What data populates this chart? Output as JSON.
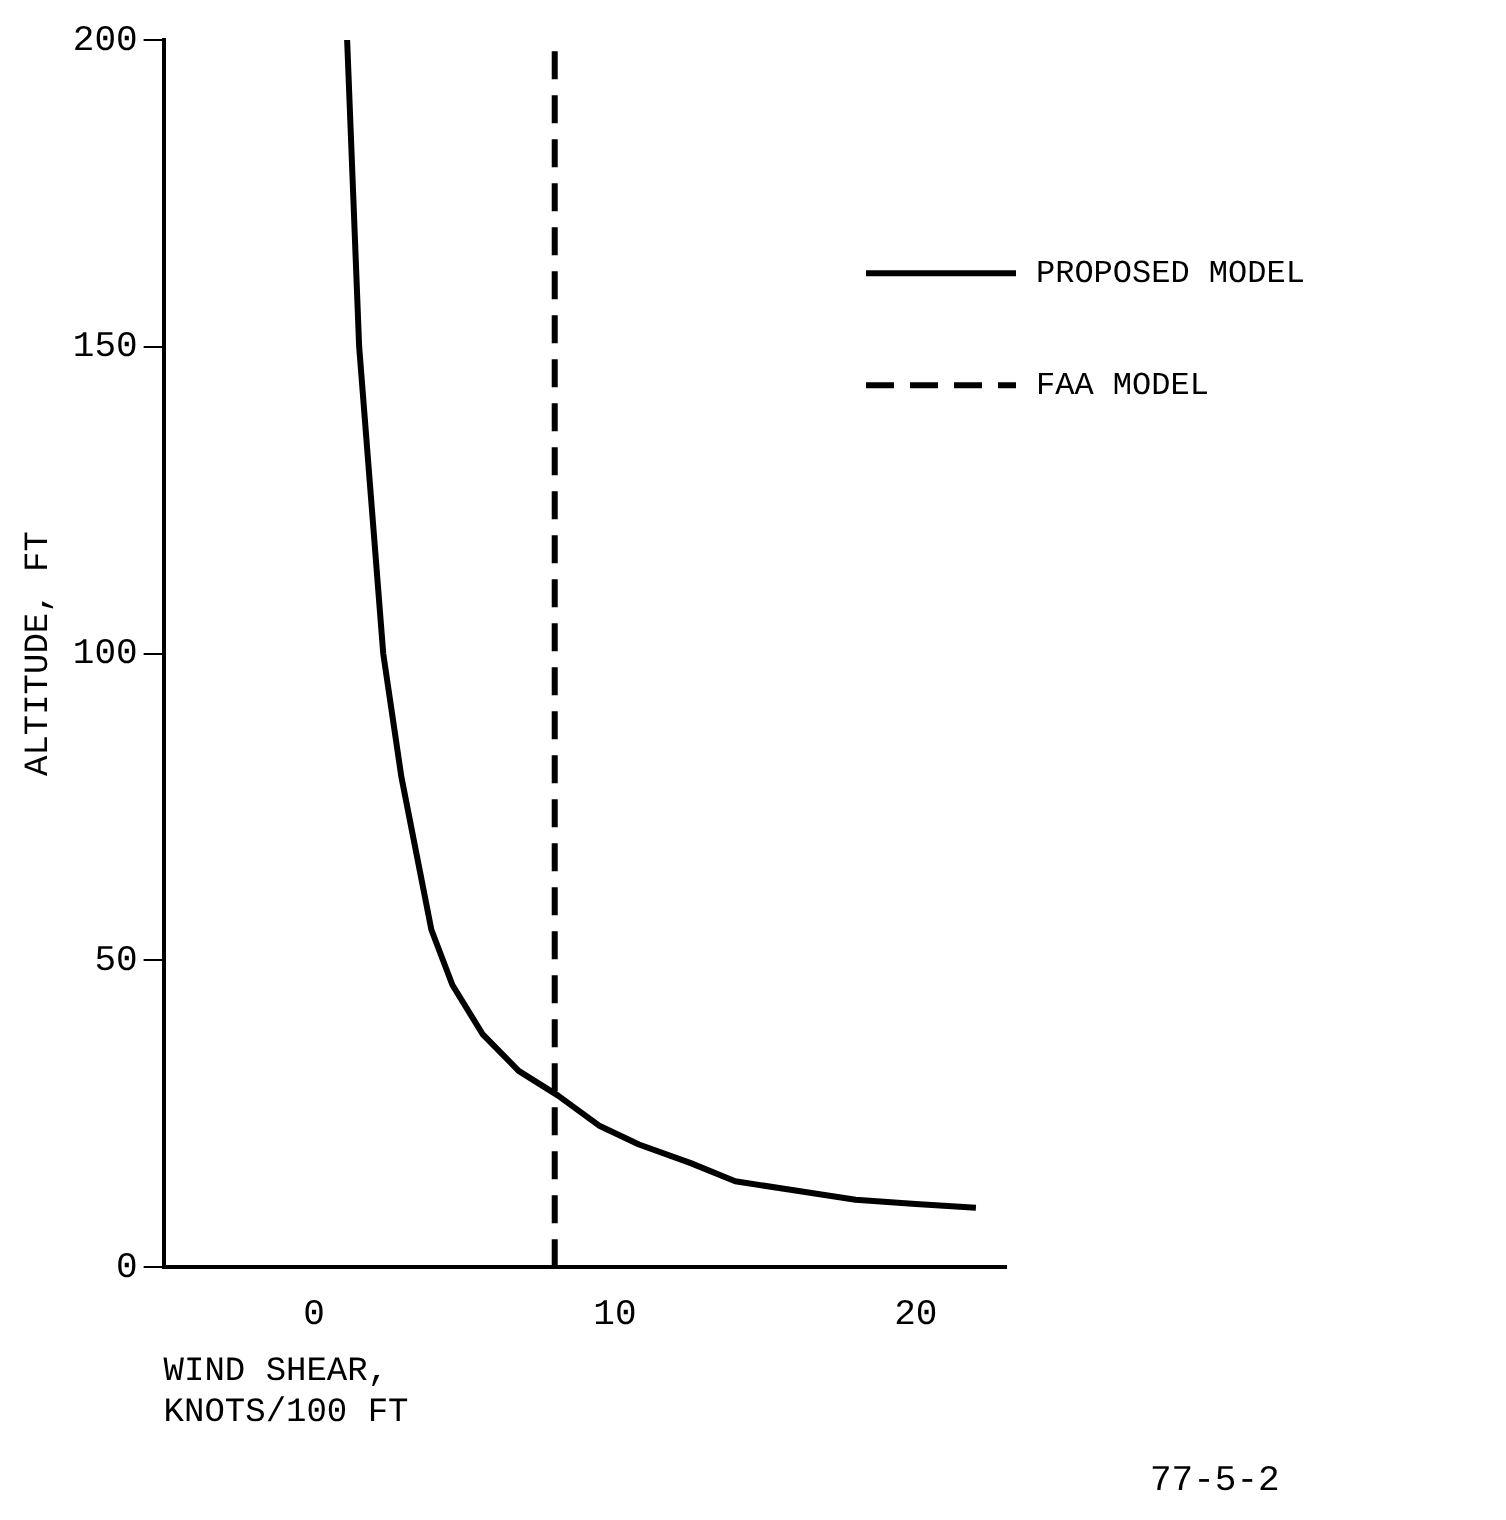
{
  "chart_data": {
    "type": "line",
    "xlabel": "WIND SHEAR,\nKNOTS/100 FT",
    "ylabel": "ALTITUDE, FT",
    "xlim": [
      -5,
      23
    ],
    "xticks": [
      0,
      10,
      20
    ],
    "ylim": [
      0,
      200
    ],
    "yticks": [
      0,
      50,
      100,
      150,
      200
    ],
    "grid": false,
    "legend": "right",
    "marker": "none",
    "annotations": [
      "77-5-2"
    ],
    "series": [
      {
        "name": "PROPOSED MODEL",
        "color": "#000000",
        "line_style": "solid",
        "x": [
          1.1,
          1.3,
          1.5,
          1.9,
          2.3,
          2.9,
          3.5,
          3.9,
          4.6,
          5.6,
          6.8,
          8.1,
          9.5,
          10.8,
          12.5,
          14,
          16,
          18,
          20,
          22
        ],
        "values": [
          200,
          175,
          150,
          125,
          100,
          80,
          65,
          55,
          46,
          38,
          32,
          28,
          23,
          20,
          17,
          14,
          12.5,
          11,
          10.3,
          9.7
        ]
      },
      {
        "name": "FAA MODEL",
        "color": "#000000",
        "line_style": "dashed",
        "x": [
          8,
          8
        ],
        "values": [
          0,
          200
        ]
      }
    ]
  }
}
